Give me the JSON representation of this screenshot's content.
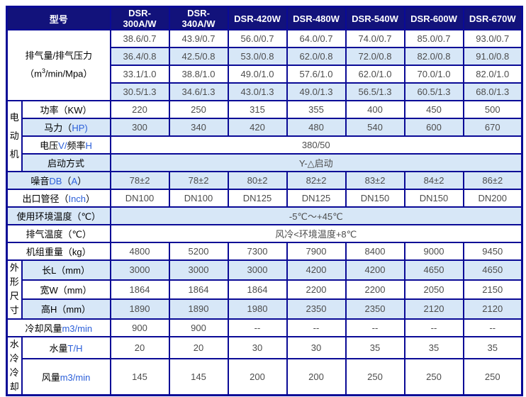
{
  "colors": {
    "header_bg": "#12127B",
    "border": "#0A0A96",
    "row_alt": "#D7E7F7",
    "latin": "#2B5FD9",
    "value_text": "#4D4D4D"
  },
  "header": {
    "corner_label": "型号",
    "models": [
      "DSR-300A/W",
      "DSR-340A/W",
      "DSR-420W",
      "DSR-480W",
      "DSR-540W",
      "DSR-600W",
      "DSR-670W"
    ]
  },
  "capacity": {
    "label_line1": "排气量/排气压力",
    "label_paren_open": "（m",
    "label_sup": "3",
    "label_rest": "/min/Mpa）",
    "rows": [
      {
        "values": [
          "38.6/0.7",
          "43.9/0.7",
          "56.0/0.7",
          "64.0/0.7",
          "74.0/0.7",
          "85.0/0.7",
          "93.0/0.7"
        ]
      },
      {
        "values": [
          "36.4/0.8",
          "42.5/0.8",
          "53.0/0.8",
          "62.0/0.8",
          "72.0/0.8",
          "82.0/0.8",
          "91.0/0.8"
        ]
      },
      {
        "values": [
          "33.1/1.0",
          "38.8/1.0",
          "49.0/1.0",
          "57.6/1.0",
          "62.0/1.0",
          "70.0/1.0",
          "82.0/1.0"
        ]
      },
      {
        "values": [
          "30.5/1.3",
          "34.6/1.3",
          "43.0/1.3",
          "49.0/1.3",
          "56.5/1.3",
          "60.5/1.3",
          "68.0/1.3"
        ]
      }
    ]
  },
  "motor": {
    "group_label": "电动机",
    "power": {
      "label": "功率（KW）",
      "values": [
        "220",
        "250",
        "315",
        "355",
        "400",
        "450",
        "500"
      ]
    },
    "horsepower": {
      "label": "马力（HP)",
      "values": [
        "300",
        "340",
        "420",
        "480",
        "540",
        "600",
        "670"
      ]
    },
    "voltage": {
      "label": "电压V/频率H",
      "value": "380/50"
    },
    "start_mode": {
      "label": "启动方式",
      "value": "Y-△启动"
    }
  },
  "noise": {
    "label": "噪音DB（A）",
    "values": [
      "78±2",
      "78±2",
      "80±2",
      "82±2",
      "83±2",
      "84±2",
      "86±2"
    ]
  },
  "outlet": {
    "label": "出口管径（Inch）",
    "values": [
      "DN100",
      "DN100",
      "DN125",
      "DN125",
      "DN150",
      "DN150",
      "DN200"
    ]
  },
  "ambient_temp": {
    "label": "使用环境温度（℃）",
    "value": "-5℃～+45℃"
  },
  "exhaust_temp": {
    "label": "排气温度（℃）",
    "value": "风冷<环境温度+8℃"
  },
  "weight": {
    "label": "机组重量（kg）",
    "values": [
      "4800",
      "5200",
      "7300",
      "7900",
      "8400",
      "9000",
      "9450"
    ]
  },
  "dimensions": {
    "group_label": "外形尺寸",
    "length": {
      "label": "长L（mm）",
      "values": [
        "3000",
        "3000",
        "3000",
        "4200",
        "4200",
        "4650",
        "4650"
      ]
    },
    "width": {
      "label": "宽W（mm）",
      "values": [
        "1864",
        "1864",
        "1864",
        "2200",
        "2200",
        "2050",
        "2150"
      ]
    },
    "height": {
      "label": "高H（mm）",
      "values": [
        "1890",
        "1890",
        "1980",
        "2350",
        "2350",
        "2120",
        "2120"
      ]
    }
  },
  "cooling_air": {
    "label": "冷却风量m3/min",
    "values": [
      "900",
      "900",
      "--",
      "--",
      "--",
      "--",
      "--"
    ]
  },
  "water_cooling": {
    "group_label": "水冷冷却",
    "water": {
      "label": "水量T/H",
      "values": [
        "20",
        "20",
        "30",
        "30",
        "35",
        "35",
        "35"
      ]
    },
    "air": {
      "label": "风量m3/min",
      "values": [
        "145",
        "145",
        "200",
        "200",
        "250",
        "250",
        "250"
      ]
    }
  }
}
